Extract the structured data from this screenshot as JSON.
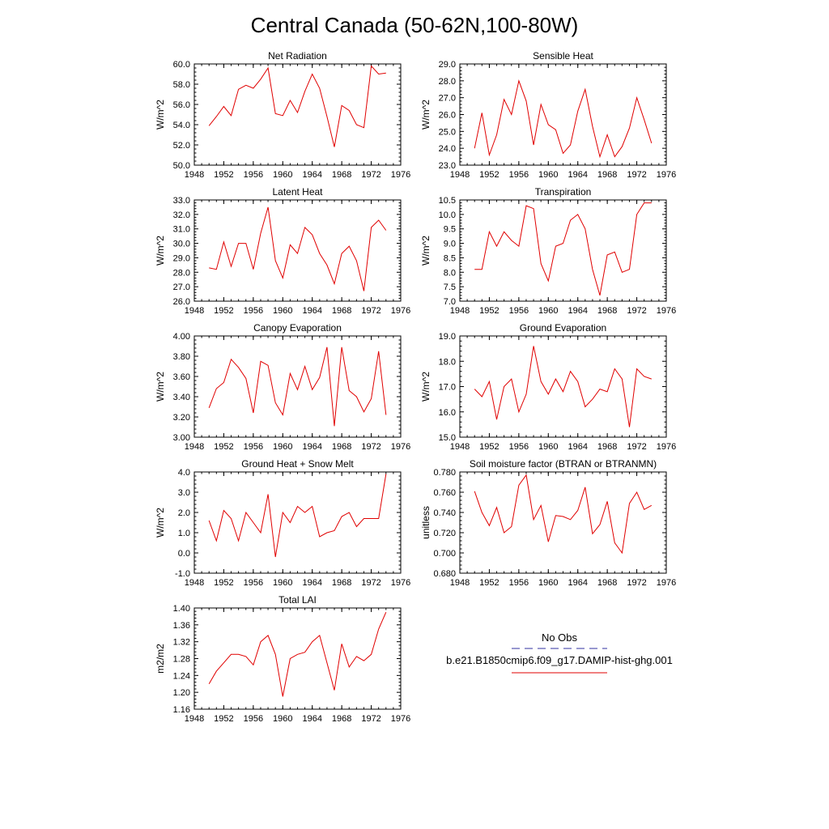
{
  "title": "Central Canada (50-62N,100-80W)",
  "legend": {
    "obs_label": "No Obs",
    "obs_color": "#3030a0",
    "model_label": "b.e21.B1850cmip6.f09_g17.DAMIP-hist-ghg.001",
    "model_color": "#e00000"
  },
  "chart_data": [
    {
      "type": "line",
      "title": "Net Radiation",
      "ylabel": "W/m^2",
      "xlim": [
        1948,
        1976
      ],
      "ylim": [
        50.0,
        60.0
      ],
      "xticks": [
        "1948",
        "1952",
        "1956",
        "1960",
        "1964",
        "1968",
        "1972",
        "1976"
      ],
      "yticks": [
        "50.0",
        "52.0",
        "54.0",
        "56.0",
        "58.0",
        "60.0"
      ],
      "x": [
        1950,
        1951,
        1952,
        1953,
        1954,
        1955,
        1956,
        1957,
        1958,
        1959,
        1960,
        1961,
        1962,
        1963,
        1964,
        1965,
        1966,
        1967,
        1968,
        1969,
        1970,
        1971,
        1972,
        1973,
        1974
      ],
      "values": [
        53.9,
        54.8,
        55.8,
        54.9,
        57.5,
        57.9,
        57.6,
        58.5,
        59.6,
        55.1,
        54.9,
        56.4,
        55.2,
        57.3,
        59.0,
        57.6,
        54.8,
        51.8,
        55.9,
        55.4,
        54.0,
        53.7,
        59.8,
        59.0,
        59.1
      ]
    },
    {
      "type": "line",
      "title": "Sensible Heat",
      "ylabel": "W/m^2",
      "xlim": [
        1948,
        1976
      ],
      "ylim": [
        23.0,
        29.0
      ],
      "xticks": [
        "1948",
        "1952",
        "1956",
        "1960",
        "1964",
        "1968",
        "1972",
        "1976"
      ],
      "yticks": [
        "23.0",
        "24.0",
        "25.0",
        "26.0",
        "27.0",
        "28.0",
        "29.0"
      ],
      "x": [
        1950,
        1951,
        1952,
        1953,
        1954,
        1955,
        1956,
        1957,
        1958,
        1959,
        1960,
        1961,
        1962,
        1963,
        1964,
        1965,
        1966,
        1967,
        1968,
        1969,
        1970,
        1971,
        1972,
        1973,
        1974
      ],
      "values": [
        24.0,
        26.1,
        23.6,
        24.8,
        26.9,
        26.0,
        28.0,
        26.8,
        24.2,
        26.6,
        25.4,
        25.1,
        23.7,
        24.2,
        26.2,
        27.5,
        25.3,
        23.5,
        24.8,
        23.5,
        24.1,
        25.2,
        27.0,
        25.7,
        24.3
      ]
    },
    {
      "type": "line",
      "title": "Latent Heat",
      "ylabel": "W/m^2",
      "xlim": [
        1948,
        1976
      ],
      "ylim": [
        26.0,
        33.0
      ],
      "xticks": [
        "1948",
        "1952",
        "1956",
        "1960",
        "1964",
        "1968",
        "1972",
        "1976"
      ],
      "yticks": [
        "26.0",
        "27.0",
        "28.0",
        "29.0",
        "30.0",
        "31.0",
        "32.0",
        "33.0"
      ],
      "x": [
        1950,
        1951,
        1952,
        1953,
        1954,
        1955,
        1956,
        1957,
        1958,
        1959,
        1960,
        1961,
        1962,
        1963,
        1964,
        1965,
        1966,
        1967,
        1968,
        1969,
        1970,
        1971,
        1972,
        1973,
        1974
      ],
      "values": [
        28.3,
        28.2,
        30.1,
        28.4,
        30.0,
        30.0,
        28.2,
        30.7,
        32.5,
        28.8,
        27.6,
        29.9,
        29.3,
        31.1,
        30.6,
        29.3,
        28.5,
        27.2,
        29.3,
        29.8,
        28.8,
        26.7,
        31.1,
        31.6,
        30.9
      ]
    },
    {
      "type": "line",
      "title": "Transpiration",
      "ylabel": "W/m^2",
      "xlim": [
        1948,
        1976
      ],
      "ylim": [
        7.0,
        10.5
      ],
      "xticks": [
        "1948",
        "1952",
        "1956",
        "1960",
        "1964",
        "1968",
        "1972",
        "1976"
      ],
      "yticks": [
        "7.0",
        "7.5",
        "8.0",
        "8.5",
        "9.0",
        "9.5",
        "10.0",
        "10.5"
      ],
      "x": [
        1950,
        1951,
        1952,
        1953,
        1954,
        1955,
        1956,
        1957,
        1958,
        1959,
        1960,
        1961,
        1962,
        1963,
        1964,
        1965,
        1966,
        1967,
        1968,
        1969,
        1970,
        1971,
        1972,
        1973,
        1974
      ],
      "values": [
        8.1,
        8.1,
        9.4,
        8.9,
        9.4,
        9.1,
        8.9,
        10.3,
        10.2,
        8.3,
        7.7,
        8.9,
        9.0,
        9.8,
        10.0,
        9.5,
        8.1,
        7.2,
        8.6,
        8.7,
        8.0,
        8.1,
        10.0,
        10.4,
        10.4
      ]
    },
    {
      "type": "line",
      "title": "Canopy Evaporation",
      "ylabel": "W/m^2",
      "xlim": [
        1948,
        1976
      ],
      "ylim": [
        3.0,
        4.0
      ],
      "xticks": [
        "1948",
        "1952",
        "1956",
        "1960",
        "1964",
        "1968",
        "1972",
        "1976"
      ],
      "yticks": [
        "3.00",
        "3.20",
        "3.40",
        "3.60",
        "3.80",
        "4.00"
      ],
      "x": [
        1950,
        1951,
        1952,
        1953,
        1954,
        1955,
        1956,
        1957,
        1958,
        1959,
        1960,
        1961,
        1962,
        1963,
        1964,
        1965,
        1966,
        1967,
        1968,
        1969,
        1970,
        1971,
        1972,
        1973,
        1974
      ],
      "values": [
        3.29,
        3.48,
        3.54,
        3.77,
        3.69,
        3.58,
        3.24,
        3.75,
        3.71,
        3.34,
        3.22,
        3.63,
        3.47,
        3.7,
        3.47,
        3.59,
        3.89,
        3.11,
        3.89,
        3.46,
        3.4,
        3.25,
        3.38,
        3.85,
        3.22
      ]
    },
    {
      "type": "line",
      "title": "Ground Evaporation",
      "ylabel": "W/m^2",
      "xlim": [
        1948,
        1976
      ],
      "ylim": [
        15.0,
        19.0
      ],
      "xticks": [
        "1948",
        "1952",
        "1956",
        "1960",
        "1964",
        "1968",
        "1972",
        "1976"
      ],
      "yticks": [
        "15.0",
        "16.0",
        "17.0",
        "18.0",
        "19.0"
      ],
      "x": [
        1950,
        1951,
        1952,
        1953,
        1954,
        1955,
        1956,
        1957,
        1958,
        1959,
        1960,
        1961,
        1962,
        1963,
        1964,
        1965,
        1966,
        1967,
        1968,
        1969,
        1970,
        1971,
        1972,
        1973,
        1974
      ],
      "values": [
        16.9,
        16.6,
        17.2,
        15.7,
        17.0,
        17.3,
        16.0,
        16.7,
        18.6,
        17.2,
        16.7,
        17.3,
        16.8,
        17.6,
        17.2,
        16.2,
        16.5,
        16.9,
        16.8,
        17.7,
        17.3,
        15.4,
        17.7,
        17.4,
        17.3
      ]
    },
    {
      "type": "line",
      "title": "Ground Heat + Snow Melt",
      "ylabel": "W/m^2",
      "xlim": [
        1948,
        1976
      ],
      "ylim": [
        -1.0,
        4.0
      ],
      "xticks": [
        "1948",
        "1952",
        "1956",
        "1960",
        "1964",
        "1968",
        "1972",
        "1976"
      ],
      "yticks": [
        "-1.0",
        "0.0",
        "1.0",
        "2.0",
        "3.0",
        "4.0"
      ],
      "x": [
        1950,
        1951,
        1952,
        1953,
        1954,
        1955,
        1956,
        1957,
        1958,
        1959,
        1960,
        1961,
        1962,
        1963,
        1964,
        1965,
        1966,
        1967,
        1968,
        1969,
        1970,
        1971,
        1972,
        1973,
        1974
      ],
      "values": [
        1.6,
        0.6,
        2.1,
        1.7,
        0.6,
        2.0,
        1.5,
        1.0,
        2.9,
        -0.2,
        2.0,
        1.5,
        2.3,
        2.0,
        2.3,
        0.8,
        1.0,
        1.1,
        1.8,
        2.0,
        1.3,
        1.7,
        1.7,
        1.7,
        3.9
      ]
    },
    {
      "type": "line",
      "title": "Soil moisture factor (BTRAN or BTRANMN)",
      "ylabel": "unitless",
      "xlim": [
        1948,
        1976
      ],
      "ylim": [
        0.68,
        0.78
      ],
      "xticks": [
        "1948",
        "1952",
        "1956",
        "1960",
        "1964",
        "1968",
        "1972",
        "1976"
      ],
      "yticks": [
        "0.680",
        "0.700",
        "0.720",
        "0.740",
        "0.760",
        "0.780"
      ],
      "x": [
        1950,
        1951,
        1952,
        1953,
        1954,
        1955,
        1956,
        1957,
        1958,
        1959,
        1960,
        1961,
        1962,
        1963,
        1964,
        1965,
        1966,
        1967,
        1968,
        1969,
        1970,
        1971,
        1972,
        1973,
        1974
      ],
      "values": [
        0.761,
        0.74,
        0.727,
        0.745,
        0.72,
        0.726,
        0.767,
        0.777,
        0.733,
        0.747,
        0.711,
        0.737,
        0.736,
        0.733,
        0.742,
        0.765,
        0.719,
        0.728,
        0.751,
        0.71,
        0.7,
        0.749,
        0.76,
        0.743,
        0.747
      ]
    },
    {
      "type": "line",
      "title": "Total LAI",
      "ylabel": "m2/m2",
      "xlim": [
        1948,
        1976
      ],
      "ylim": [
        1.16,
        1.4
      ],
      "xticks": [
        "1948",
        "1952",
        "1956",
        "1960",
        "1964",
        "1968",
        "1972",
        "1976"
      ],
      "yticks": [
        "1.16",
        "1.20",
        "1.24",
        "1.28",
        "1.32",
        "1.36",
        "1.40"
      ],
      "x": [
        1950,
        1951,
        1952,
        1953,
        1954,
        1955,
        1956,
        1957,
        1958,
        1959,
        1960,
        1961,
        1962,
        1963,
        1964,
        1965,
        1966,
        1967,
        1968,
        1969,
        1970,
        1971,
        1972,
        1973,
        1974
      ],
      "values": [
        1.22,
        1.25,
        1.27,
        1.29,
        1.29,
        1.285,
        1.265,
        1.32,
        1.335,
        1.29,
        1.19,
        1.28,
        1.29,
        1.295,
        1.32,
        1.335,
        1.27,
        1.205,
        1.315,
        1.26,
        1.285,
        1.275,
        1.29,
        1.35,
        1.39
      ]
    }
  ]
}
